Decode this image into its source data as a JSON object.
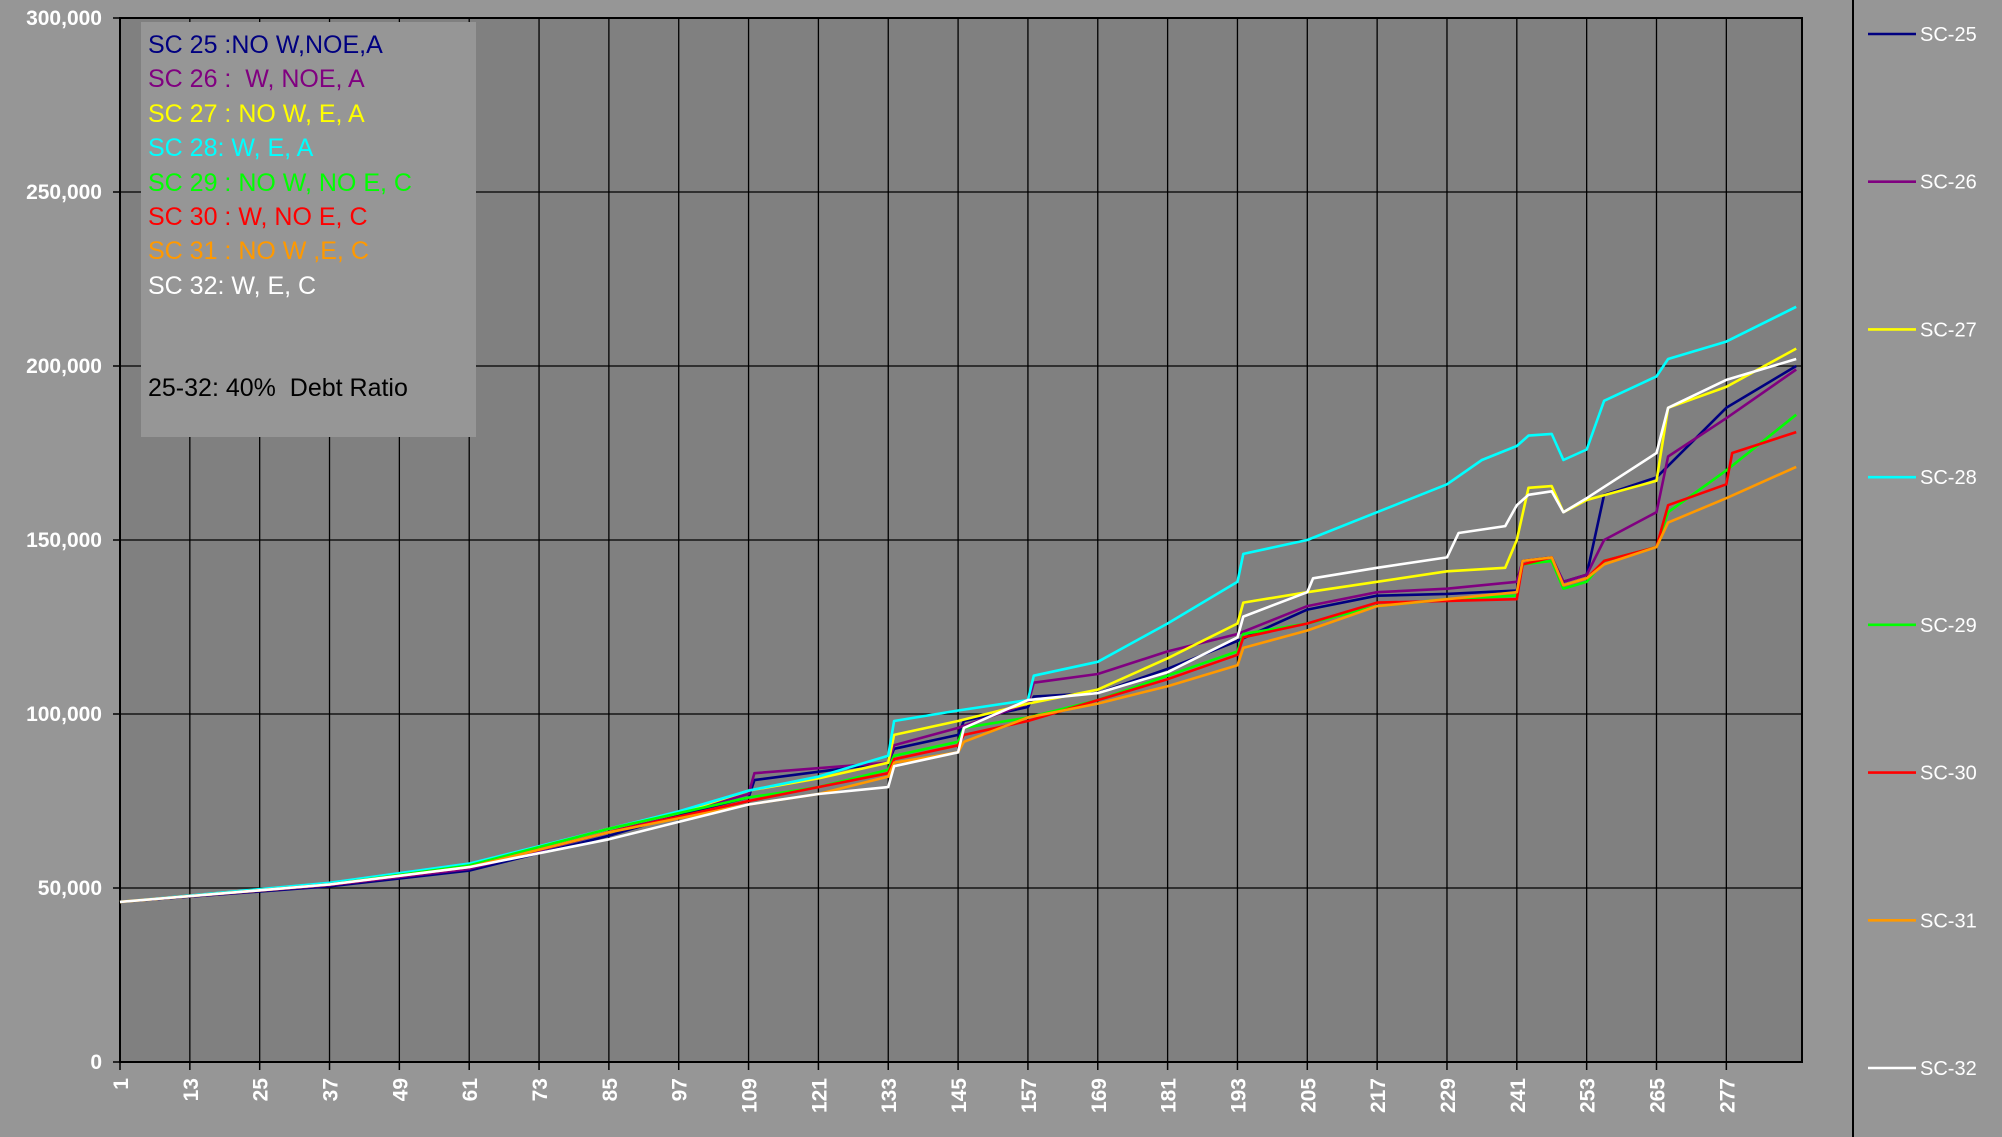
{
  "chart_data": {
    "type": "line",
    "title": "",
    "xlabel": "",
    "ylabel": "",
    "xlim": [
      1,
      290
    ],
    "ylim": [
      0,
      300000
    ],
    "x_ticks": [
      "1",
      "13",
      "25",
      "37",
      "49",
      "61",
      "73",
      "85",
      "97",
      "109",
      "121",
      "133",
      "145",
      "157",
      "169",
      "181",
      "193",
      "205",
      "217",
      "229",
      "241",
      "253",
      "265",
      "277"
    ],
    "y_ticks": [
      "0",
      "50,000",
      "100,000",
      "150,000",
      "200,000",
      "250,000",
      "300,000"
    ],
    "grid": true,
    "legend_position": "right",
    "plot_background": "#808080",
    "series": [
      {
        "name": "SC-25",
        "color": "#000080",
        "points": [
          [
            1,
            46000
          ],
          [
            37,
            50500
          ],
          [
            61,
            55000
          ],
          [
            85,
            65000
          ],
          [
            97,
            71000
          ],
          [
            109,
            76000
          ],
          [
            110,
            81000
          ],
          [
            133,
            86000
          ],
          [
            134,
            90000
          ],
          [
            145,
            94000
          ],
          [
            146,
            98000
          ],
          [
            157,
            102000
          ],
          [
            158,
            105000
          ],
          [
            169,
            106000
          ],
          [
            181,
            113000
          ],
          [
            193,
            121000
          ],
          [
            205,
            130000
          ],
          [
            217,
            134000
          ],
          [
            229,
            134500
          ],
          [
            241,
            135500
          ],
          [
            242,
            144000
          ],
          [
            247,
            145000
          ],
          [
            249,
            138000
          ],
          [
            253,
            140000
          ],
          [
            256,
            163000
          ],
          [
            265,
            168000
          ],
          [
            277,
            188000
          ],
          [
            289,
            200000
          ]
        ]
      },
      {
        "name": "SC-26",
        "color": "#800080",
        "points": [
          [
            1,
            46000
          ],
          [
            37,
            50800
          ],
          [
            61,
            55500
          ],
          [
            85,
            66000
          ],
          [
            97,
            71500
          ],
          [
            109,
            77000
          ],
          [
            110,
            83000
          ],
          [
            133,
            86000
          ],
          [
            134,
            91000
          ],
          [
            145,
            96000
          ],
          [
            157,
            103000
          ],
          [
            158,
            109000
          ],
          [
            169,
            111500
          ],
          [
            181,
            118000
          ],
          [
            193,
            123000
          ],
          [
            205,
            131000
          ],
          [
            217,
            135000
          ],
          [
            229,
            136000
          ],
          [
            241,
            138000
          ],
          [
            242,
            144000
          ],
          [
            247,
            145000
          ],
          [
            249,
            138000
          ],
          [
            253,
            140000
          ],
          [
            256,
            150000
          ],
          [
            265,
            158000
          ],
          [
            267,
            174000
          ],
          [
            277,
            185000
          ],
          [
            289,
            199000
          ]
        ]
      },
      {
        "name": "SC-27",
        "color": "#ffff00",
        "points": [
          [
            1,
            46000
          ],
          [
            37,
            51000
          ],
          [
            61,
            56500
          ],
          [
            85,
            67000
          ],
          [
            97,
            71500
          ],
          [
            109,
            78000
          ],
          [
            121,
            81500
          ],
          [
            133,
            86000
          ],
          [
            134,
            94000
          ],
          [
            145,
            98000
          ],
          [
            157,
            103000
          ],
          [
            169,
            107000
          ],
          [
            181,
            116000
          ],
          [
            193,
            126000
          ],
          [
            194,
            132000
          ],
          [
            205,
            135000
          ],
          [
            217,
            138000
          ],
          [
            229,
            141000
          ],
          [
            239,
            142000
          ],
          [
            241,
            150000
          ],
          [
            243,
            165000
          ],
          [
            247,
            165500
          ],
          [
            249,
            158000
          ],
          [
            253,
            161500
          ],
          [
            265,
            167000
          ],
          [
            267,
            188000
          ],
          [
            277,
            194000
          ],
          [
            289,
            205000
          ]
        ]
      },
      {
        "name": "SC-28",
        "color": "#00ffff",
        "points": [
          [
            1,
            46000
          ],
          [
            37,
            51500
          ],
          [
            61,
            57000
          ],
          [
            85,
            67000
          ],
          [
            97,
            72000
          ],
          [
            109,
            78000
          ],
          [
            121,
            82000
          ],
          [
            133,
            88000
          ],
          [
            134,
            98000
          ],
          [
            145,
            101000
          ],
          [
            157,
            104000
          ],
          [
            158,
            111000
          ],
          [
            169,
            115000
          ],
          [
            181,
            126000
          ],
          [
            193,
            138000
          ],
          [
            194,
            146000
          ],
          [
            205,
            150000
          ],
          [
            217,
            158000
          ],
          [
            229,
            166000
          ],
          [
            235,
            173000
          ],
          [
            241,
            177000
          ],
          [
            243,
            180000
          ],
          [
            247,
            180500
          ],
          [
            249,
            173000
          ],
          [
            253,
            176000
          ],
          [
            256,
            190000
          ],
          [
            265,
            197000
          ],
          [
            267,
            202000
          ],
          [
            277,
            207000
          ],
          [
            289,
            217000
          ]
        ]
      },
      {
        "name": "SC-29",
        "color": "#00ff00",
        "points": [
          [
            1,
            46000
          ],
          [
            37,
            51000
          ],
          [
            61,
            56500
          ],
          [
            85,
            67000
          ],
          [
            97,
            71500
          ],
          [
            109,
            76000
          ],
          [
            121,
            79000
          ],
          [
            133,
            84000
          ],
          [
            134,
            88000
          ],
          [
            145,
            92000
          ],
          [
            146,
            96000
          ],
          [
            157,
            99000
          ],
          [
            169,
            104000
          ],
          [
            181,
            111000
          ],
          [
            193,
            118000
          ],
          [
            194,
            123000
          ],
          [
            205,
            126000
          ],
          [
            217,
            131000
          ],
          [
            229,
            133000
          ],
          [
            241,
            134000
          ],
          [
            242,
            143000
          ],
          [
            247,
            144000
          ],
          [
            249,
            136000
          ],
          [
            253,
            138000
          ],
          [
            256,
            144000
          ],
          [
            265,
            148000
          ],
          [
            267,
            158000
          ],
          [
            277,
            170000
          ],
          [
            289,
            186000
          ]
        ]
      },
      {
        "name": "SC-30",
        "color": "#ff0000",
        "points": [
          [
            1,
            46000
          ],
          [
            37,
            51000
          ],
          [
            61,
            56000
          ],
          [
            85,
            66000
          ],
          [
            97,
            70500
          ],
          [
            109,
            75000
          ],
          [
            121,
            79000
          ],
          [
            133,
            83000
          ],
          [
            134,
            87000
          ],
          [
            145,
            91000
          ],
          [
            146,
            94000
          ],
          [
            157,
            98000
          ],
          [
            169,
            104000
          ],
          [
            181,
            110000
          ],
          [
            193,
            117000
          ],
          [
            194,
            122000
          ],
          [
            205,
            126000
          ],
          [
            217,
            132000
          ],
          [
            229,
            132500
          ],
          [
            241,
            133000
          ],
          [
            242,
            143000
          ],
          [
            247,
            145000
          ],
          [
            249,
            137000
          ],
          [
            253,
            139000
          ],
          [
            256,
            144000
          ],
          [
            265,
            148000
          ],
          [
            267,
            160000
          ],
          [
            277,
            166000
          ],
          [
            278,
            175000
          ],
          [
            289,
            181000
          ]
        ]
      },
      {
        "name": "SC-31",
        "color": "#ff9900",
        "points": [
          [
            1,
            46000
          ],
          [
            37,
            51000
          ],
          [
            61,
            56000
          ],
          [
            85,
            66000
          ],
          [
            97,
            70000
          ],
          [
            109,
            74000
          ],
          [
            121,
            77000
          ],
          [
            133,
            82000
          ],
          [
            134,
            86000
          ],
          [
            145,
            89000
          ],
          [
            146,
            92000
          ],
          [
            157,
            99000
          ],
          [
            169,
            103000
          ],
          [
            181,
            108000
          ],
          [
            193,
            114000
          ],
          [
            194,
            119000
          ],
          [
            205,
            124000
          ],
          [
            217,
            131000
          ],
          [
            229,
            133000
          ],
          [
            241,
            135000
          ],
          [
            242,
            144000
          ],
          [
            247,
            145000
          ],
          [
            249,
            137000
          ],
          [
            253,
            139000
          ],
          [
            256,
            143000
          ],
          [
            265,
            148000
          ],
          [
            267,
            155000
          ],
          [
            277,
            162000
          ],
          [
            289,
            171000
          ]
        ]
      },
      {
        "name": "SC-32",
        "color": "#ffffff",
        "points": [
          [
            1,
            46000
          ],
          [
            37,
            51000
          ],
          [
            61,
            56000
          ],
          [
            85,
            64000
          ],
          [
            97,
            69000
          ],
          [
            109,
            74000
          ],
          [
            121,
            77000
          ],
          [
            133,
            79000
          ],
          [
            134,
            85000
          ],
          [
            145,
            89000
          ],
          [
            146,
            96000
          ],
          [
            157,
            104000
          ],
          [
            169,
            106000
          ],
          [
            181,
            112000
          ],
          [
            193,
            122000
          ],
          [
            194,
            128000
          ],
          [
            205,
            135000
          ],
          [
            206,
            139000
          ],
          [
            217,
            142000
          ],
          [
            229,
            145000
          ],
          [
            231,
            152000
          ],
          [
            239,
            154000
          ],
          [
            241,
            160000
          ],
          [
            243,
            163000
          ],
          [
            247,
            164000
          ],
          [
            249,
            158000
          ],
          [
            253,
            162000
          ],
          [
            265,
            175000
          ],
          [
            267,
            188000
          ],
          [
            277,
            196000
          ],
          [
            289,
            202000
          ]
        ]
      }
    ]
  },
  "annotation": {
    "lines": [
      {
        "text": "SC 25 :NO W,NOE,A",
        "color": "#000080"
      },
      {
        "text": "SC 26 :  W, NOE, A",
        "color": "#800080"
      },
      {
        "text": "SC 27 : NO W, E, A",
        "color": "#ffff00"
      },
      {
        "text": "SC 28: W, E, A",
        "color": "#00ffff"
      },
      {
        "text": "SC 29 : NO W, NO E, C",
        "color": "#00ff00"
      },
      {
        "text": "SC 30 : W, NO E, C",
        "color": "#ff0000"
      },
      {
        "text": "SC 31 : NO W ,E, C",
        "color": "#ff9900"
      },
      {
        "text": "SC 32: W, E, C",
        "color": "#ffffff"
      }
    ],
    "note": "25-32: 40%  Debt Ratio",
    "note_color": "#000000"
  }
}
